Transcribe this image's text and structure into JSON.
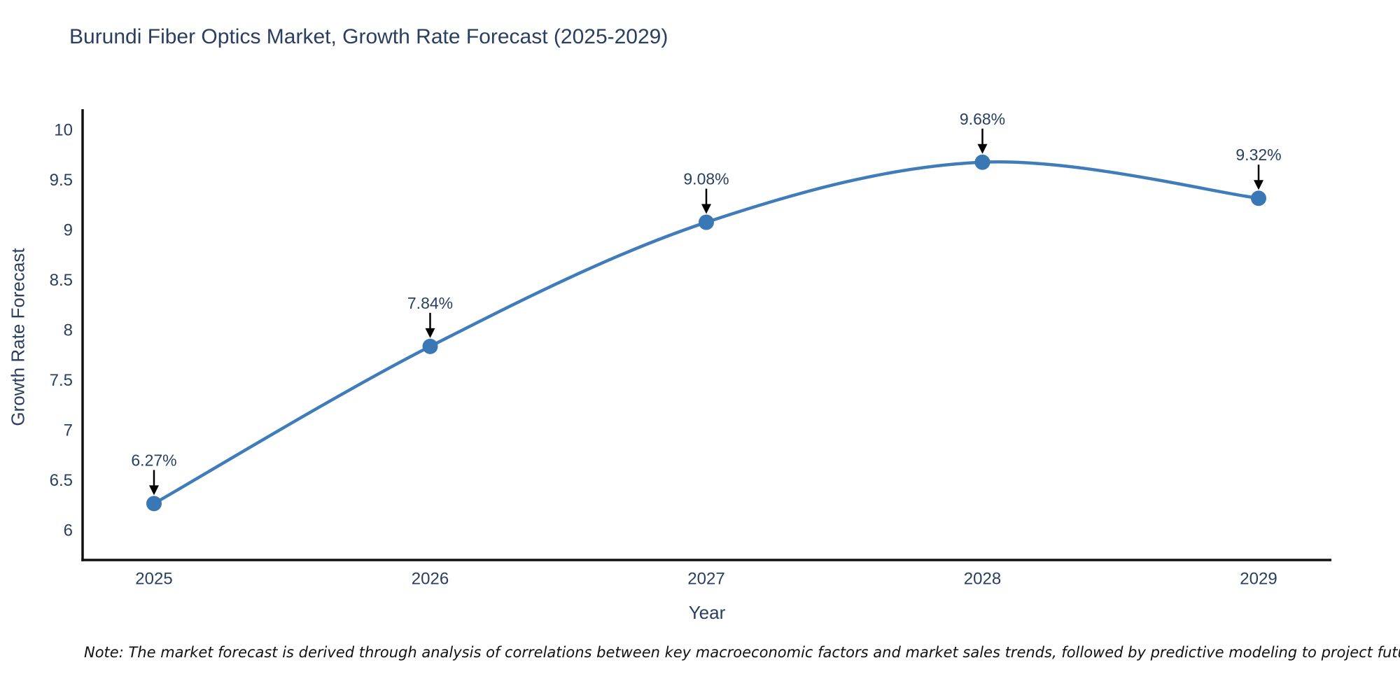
{
  "header": {
    "title": "Burundi Fiber Optics Market, Growth Rate Forecast (2025-2029)"
  },
  "chart_data": {
    "type": "line",
    "line_shape": "spline",
    "categories": [
      "2025",
      "2026",
      "2027",
      "2028",
      "2029"
    ],
    "values": [
      6.27,
      7.84,
      9.08,
      9.68,
      9.32
    ],
    "point_labels": [
      "6.27%",
      "7.84%",
      "9.08%",
      "9.68%",
      "9.32%"
    ],
    "title": "Burundi Fiber Optics Market, Growth Rate Forecast (2025-2029)",
    "xlabel": "Year",
    "ylabel": "Growth Rate Forecast",
    "ylim": [
      5.85,
      10.15
    ],
    "yticks": [
      6,
      6.5,
      7,
      7.5,
      8,
      8.5,
      9,
      9.5,
      10
    ],
    "grid": false,
    "legend": false,
    "colors": {
      "line": "#3f7cb9",
      "marker": "#3a78b5",
      "axis": "#111111",
      "tick_text": "#2a3f5f",
      "annotation_text": "#2a3f5f",
      "annotation_arrow": "#000000",
      "title_text": "#2a3f5f"
    }
  },
  "footer": {
    "note": "Note: The market forecast is derived through analysis of correlations between key macroeconomic factors and market sales trends, followed by predictive modeling to project future sales"
  }
}
